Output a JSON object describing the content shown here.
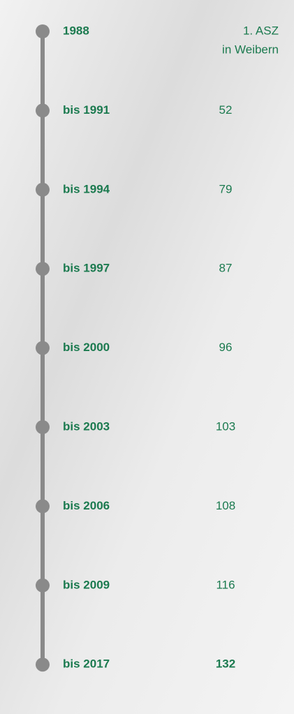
{
  "timeline": {
    "items": [
      {
        "period": "1988",
        "value": [
          "1. ASZ",
          "in Weibern"
        ]
      },
      {
        "period": "bis 1991",
        "value": 52
      },
      {
        "period": "bis 1994",
        "value": 79
      },
      {
        "period": "bis 1997",
        "value": 87
      },
      {
        "period": "bis 2000",
        "value": 96
      },
      {
        "period": "bis 2003",
        "value": 103
      },
      {
        "period": "bis 2006",
        "value": 108
      },
      {
        "period": "bis 2009",
        "value": 116
      },
      {
        "period": "bis 2017",
        "value": 132
      }
    ]
  }
}
